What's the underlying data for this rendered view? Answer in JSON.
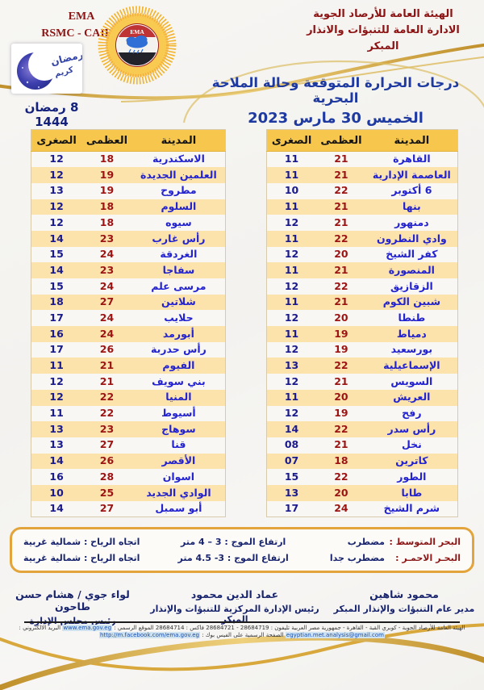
{
  "header": {
    "latin_line1": "EMA",
    "latin_line2": "RSMC - CAIRO",
    "org_line1": "الهيئة العامة للأرصاد الجوية",
    "org_line2": "الادارة العامة للتنبؤات والانذار المبكر",
    "hijri_date": "8 رمضان 1444",
    "crescent_word1": "رمضان",
    "crescent_word2": "كريم",
    "sun_emblem_text": "EMA"
  },
  "title": {
    "line1": "درجات الحرارة المتوقعة وحالة الملاحة البحرية",
    "line2": "الخميس 30 مارس 2023"
  },
  "tables": {
    "columns": [
      "المدينة",
      "العظمى",
      "الصغرى"
    ],
    "left_rows": [
      {
        "city": "الاسكندرية",
        "max": "18",
        "min": "12"
      },
      {
        "city": "العلمين الجديدة",
        "max": "19",
        "min": "12"
      },
      {
        "city": "مطروح",
        "max": "19",
        "min": "13"
      },
      {
        "city": "السلوم",
        "max": "18",
        "min": "12"
      },
      {
        "city": "سيوه",
        "max": "18",
        "min": "12"
      },
      {
        "city": "رأس غارب",
        "max": "23",
        "min": "14"
      },
      {
        "city": "الغردقة",
        "max": "24",
        "min": "15"
      },
      {
        "city": "سفاجا",
        "max": "23",
        "min": "14"
      },
      {
        "city": "مرسى علم",
        "max": "24",
        "min": "15"
      },
      {
        "city": "شلاتين",
        "max": "27",
        "min": "18"
      },
      {
        "city": "حلايب",
        "max": "24",
        "min": "17"
      },
      {
        "city": "أبورمد",
        "max": "24",
        "min": "16"
      },
      {
        "city": "رأس حدربة",
        "max": "26",
        "min": "17"
      },
      {
        "city": "الفيوم",
        "max": "21",
        "min": "11"
      },
      {
        "city": "بني سويف",
        "max": "21",
        "min": "12"
      },
      {
        "city": "المنيا",
        "max": "22",
        "min": "12"
      },
      {
        "city": "أسيوط",
        "max": "22",
        "min": "11"
      },
      {
        "city": "سوهاج",
        "max": "23",
        "min": "13"
      },
      {
        "city": "قنا",
        "max": "27",
        "min": "13"
      },
      {
        "city": "الأقصر",
        "max": "26",
        "min": "14"
      },
      {
        "city": "اسوان",
        "max": "28",
        "min": "16"
      },
      {
        "city": "الوادي الجديد",
        "max": "25",
        "min": "10"
      },
      {
        "city": "أبو سمبل",
        "max": "27",
        "min": "14"
      }
    ],
    "right_rows": [
      {
        "city": "القاهرة",
        "max": "21",
        "min": "11"
      },
      {
        "city": "العاصمة الإدارية",
        "max": "21",
        "min": "11"
      },
      {
        "city": "6 أكتوبر",
        "max": "22",
        "min": "10"
      },
      {
        "city": "بنها",
        "max": "21",
        "min": "11"
      },
      {
        "city": "دمنهور",
        "max": "21",
        "min": "12"
      },
      {
        "city": "وادي النطرون",
        "max": "22",
        "min": "11"
      },
      {
        "city": "كفر الشيخ",
        "max": "20",
        "min": "12"
      },
      {
        "city": "المنصورة",
        "max": "21",
        "min": "11"
      },
      {
        "city": "الزقازيق",
        "max": "22",
        "min": "12"
      },
      {
        "city": "شبين الكوم",
        "max": "21",
        "min": "11"
      },
      {
        "city": "طنطا",
        "max": "20",
        "min": "12"
      },
      {
        "city": "دمياط",
        "max": "19",
        "min": "11"
      },
      {
        "city": "بورسعيد",
        "max": "19",
        "min": "12"
      },
      {
        "city": "الإسماعيلية",
        "max": "22",
        "min": "13"
      },
      {
        "city": "السويس",
        "max": "21",
        "min": "12"
      },
      {
        "city": "العريش",
        "max": "20",
        "min": "11"
      },
      {
        "city": "رفح",
        "max": "19",
        "min": "12"
      },
      {
        "city": "رأس سدر",
        "max": "22",
        "min": "14"
      },
      {
        "city": "نخل",
        "max": "21",
        "min": "08"
      },
      {
        "city": "كاترين",
        "max": "18",
        "min": "07"
      },
      {
        "city": "الطور",
        "max": "22",
        "min": "15"
      },
      {
        "city": "طابا",
        "max": "20",
        "min": "13"
      },
      {
        "city": "شرم الشيخ",
        "max": "24",
        "min": "17"
      }
    ]
  },
  "marine": {
    "rows": [
      {
        "sea": "البحر المتوسط :",
        "state": "مضطرب",
        "wave": "ارتفاع الموج : 3 – 4 متر",
        "wind": "اتجاه الرياح : شمالية غربية"
      },
      {
        "sea": "البحـر الاحمـر :",
        "state": "مضطرب جدا",
        "wave": "ارتفاع الموج : 3- 4.5 متر",
        "wind": "اتجاه الرياح : شمالية غربية"
      }
    ]
  },
  "signatures": [
    {
      "name": "محمود شاهين",
      "title": "مدير عام التنبؤات والإنذار المبكر"
    },
    {
      "name": "عماد الدين محمود",
      "title": "رئيس الإدارة المركزية للتنبؤات والإنذار المبكر"
    },
    {
      "name": "لواء جوي / هشام حسن طاحون",
      "title": "رئيس مجلس الإدارة"
    }
  ],
  "footer": {
    "address_phones": "الهيئة العامة للأرصاد الجوية - كوبري القبة - القاهرة - جمهورية مصر العربية تليفون : 28684719 - 28684721 فاكس : 28684714 الموقع الرسمي :",
    "site_link": "www.ema.gov.eg",
    "email_label": "البريد الالكتروني :",
    "email_link": "egyptian.met.analysis@gmail.com",
    "facebook_label": "الصفحة الرسمية على الفيس بوك :",
    "facebook_link": "http://m.facebook.com/ema.gov.eg"
  },
  "colors": {
    "brand_maroon": "#8c1414",
    "title_blue": "#1e3aa0",
    "table_header_gold": "#f7c64d",
    "row_peach": "#fce3ac",
    "row_plain": "#f8f7f3",
    "city_blue": "#2323cf",
    "max_red": "#9c1414",
    "min_navy": "#1a1a8f",
    "marine_border_gold": "#e3a43b",
    "swoosh_gold": "#d3a33a"
  }
}
